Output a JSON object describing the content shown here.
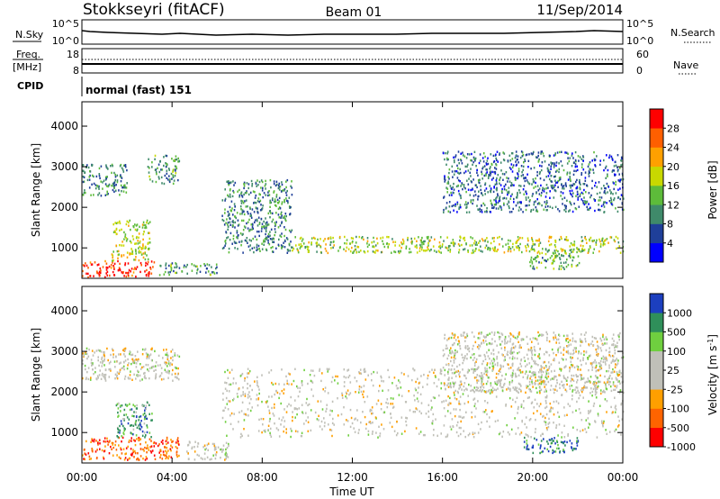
{
  "header": {
    "station": "Stokkseyri (fitACF)",
    "beam": "Beam 01",
    "date": "11/Sep/2014"
  },
  "summary_panel": {
    "nsky_label": "N.Sky",
    "nsky_ticks": [
      "10^5",
      "10^0"
    ],
    "nsearch_label": "N.Search",
    "nsearch_ticks": [
      "10^5",
      "10^0"
    ],
    "freq_label": "Freq.",
    "freq_unit": "[MHz]",
    "freq_ticks": [
      "18",
      "8"
    ],
    "nave_label": "Nave",
    "nave_ticks": [
      "60",
      "0"
    ],
    "cpid_label": "CPID",
    "cpid_value": "normal (fast) 151"
  },
  "colors": {
    "power_scale": [
      "#0000ff",
      "#1f3f99",
      "#3f8a6a",
      "#5dbb3a",
      "#c8d800",
      "#ffa000",
      "#ff5f00",
      "#ff0000"
    ],
    "velocity_scale": [
      "#1c3fbf",
      "#2f8f5a",
      "#6fcf3f",
      "#c0c0b8",
      "#c0c0b8",
      "#ff9f00",
      "#ff6400",
      "#ff0000"
    ]
  },
  "chart_data": [
    {
      "type": "heatmap",
      "name": "power",
      "ylabel": "Slant Range [km]",
      "yticks": [
        "1000",
        "2000",
        "3000",
        "4000"
      ],
      "ylim": [
        250,
        4600
      ],
      "colorbar_label": "Power [dB]",
      "colorbar_ticks": [
        "4",
        "8",
        "12",
        "16",
        "20",
        "24",
        "28"
      ],
      "colorbar_range": [
        0,
        32
      ],
      "features": [
        {
          "t0": 0.0,
          "t1": 3.2,
          "r0": 300,
          "r1": 700,
          "level": 0.9
        },
        {
          "t0": 1.3,
          "t1": 3.0,
          "r0": 700,
          "r1": 1700,
          "level": 0.55
        },
        {
          "t0": 0.0,
          "t1": 2.0,
          "r0": 2300,
          "r1": 3100,
          "level": 0.3
        },
        {
          "t0": 2.9,
          "t1": 4.3,
          "r0": 2600,
          "r1": 3300,
          "level": 0.35
        },
        {
          "t0": 3.4,
          "t1": 6.0,
          "r0": 350,
          "r1": 650,
          "level": 0.35
        },
        {
          "t0": 6.2,
          "t1": 9.3,
          "r0": 900,
          "r1": 2700,
          "level": 0.3
        },
        {
          "t0": 9.3,
          "t1": 24.0,
          "r0": 900,
          "r1": 1300,
          "level": 0.5
        },
        {
          "t0": 16.0,
          "t1": 24.0,
          "r0": 1900,
          "r1": 3400,
          "level": 0.25
        },
        {
          "t0": 19.8,
          "t1": 22.2,
          "r0": 500,
          "r1": 1000,
          "level": 0.4
        }
      ]
    },
    {
      "type": "heatmap",
      "name": "velocity",
      "xlabel": "Time UT",
      "xticks": [
        "00:00",
        "04:00",
        "08:00",
        "12:00",
        "16:00",
        "20:00",
        "00:00"
      ],
      "xlim": [
        0,
        24
      ],
      "ylabel": "Slant Range [km]",
      "yticks": [
        "1000",
        "2000",
        "3000",
        "4000"
      ],
      "ylim": [
        250,
        4600
      ],
      "colorbar_label": "Velocity [m s",
      "colorbar_label_sup": "-1",
      "colorbar_label_end": "]",
      "colorbar_ticks": [
        "1000",
        "500",
        "100",
        "25",
        "-25",
        "-100",
        "-500",
        "-1000"
      ],
      "colorbar_range": [
        -1200,
        1200
      ],
      "features": [
        {
          "t0": 0.0,
          "t1": 4.3,
          "r0": 350,
          "r1": 900,
          "level": 0.8
        },
        {
          "t0": 1.5,
          "t1": 3.1,
          "r0": 900,
          "r1": 1800,
          "level": 0.25
        },
        {
          "t0": 0.0,
          "t1": 4.3,
          "r0": 2300,
          "r1": 3100,
          "level": 0.5
        },
        {
          "t0": 4.6,
          "t1": 6.5,
          "r0": 350,
          "r1": 800,
          "level": 0.5
        },
        {
          "t0": 6.2,
          "t1": 24.0,
          "r0": 900,
          "r1": 2600,
          "level": 0.5
        },
        {
          "t0": 19.6,
          "t1": 22.0,
          "r0": 500,
          "r1": 900,
          "level": 0.12
        },
        {
          "t0": 16.0,
          "t1": 24.0,
          "r0": 2000,
          "r1": 3500,
          "level": 0.5
        }
      ]
    }
  ]
}
